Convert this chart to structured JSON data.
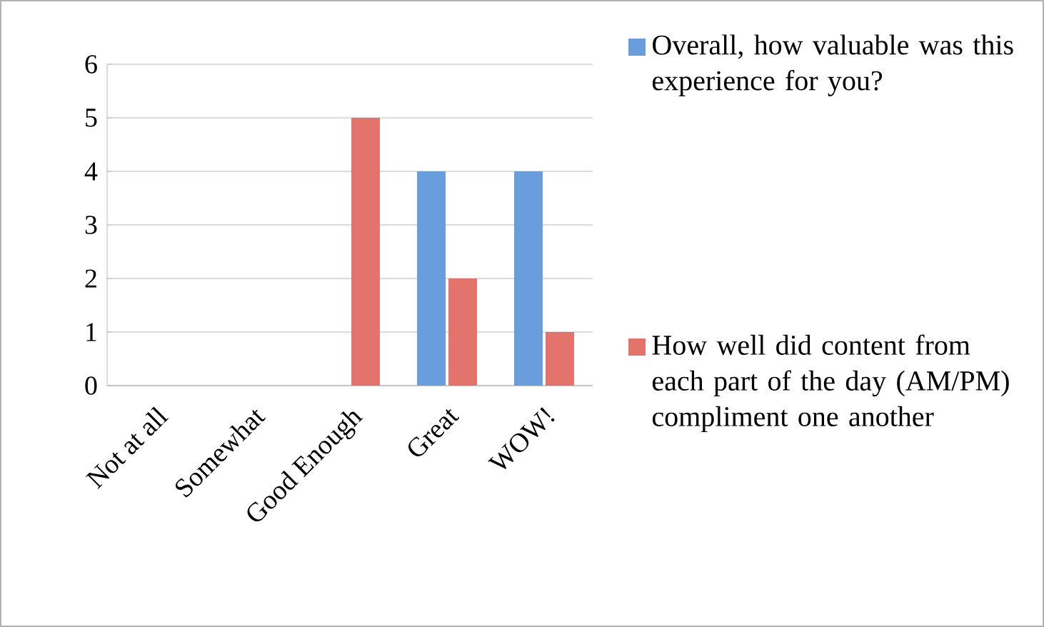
{
  "chart_data": {
    "type": "bar",
    "categories": [
      "Not at all",
      "Somewhat",
      "Good Enough",
      "Great",
      "WOW!"
    ],
    "series": [
      {
        "name": "Overall, how valuable was this experience for you?",
        "color": "#6a9ddb",
        "values": [
          0,
          0,
          0,
          4,
          4
        ]
      },
      {
        "name": "How well did content from each part of the day (AM/PM) compliment one another",
        "color": "#e4736c",
        "values": [
          0,
          0,
          5,
          2,
          1
        ]
      }
    ],
    "ylim": [
      0,
      6
    ],
    "yticks": [
      0,
      1,
      2,
      3,
      4,
      5,
      6
    ],
    "grid": "y",
    "legend": "right"
  }
}
